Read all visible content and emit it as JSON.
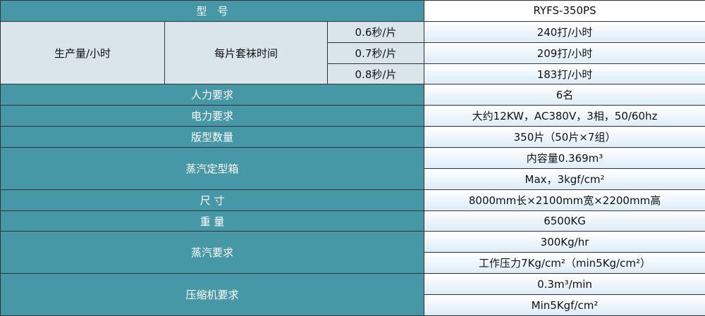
{
  "model": {
    "label": "型　号",
    "value": "RYFS-350PS"
  },
  "production": {
    "label": "生产量/小时",
    "sub_label": "每片套袜时间",
    "rows": [
      {
        "time": "0.6秒/片",
        "value": "240打/小时"
      },
      {
        "time": "0.7秒/片",
        "value": "209打/小时"
      },
      {
        "time": "0.8秒/片",
        "value": "183打/小时"
      }
    ]
  },
  "labor": {
    "label": "人力要求",
    "value": "6名"
  },
  "power": {
    "label": "电力要求",
    "value": "大约12KW，AC380V，3相，50/60hz"
  },
  "plates": {
    "label": "版型数量",
    "value": "350片（50片×7组）"
  },
  "steam_box": {
    "label": "蒸汽定型箱",
    "values": [
      "内容量0.369m³",
      "Max，3kgf/cm²"
    ]
  },
  "size": {
    "label": "尺 寸",
    "value": "8000mm长×2100mm宽×2200mm高"
  },
  "weight": {
    "label": "重 量",
    "value": "6500KG"
  },
  "steam": {
    "label": "蒸汽要求",
    "values": [
      "300Kg/hr",
      "工作压力7Kg/cm²（min5Kg/cm²）"
    ]
  },
  "compressor": {
    "label": "压缩机要求",
    "values": [
      "0.3m³/min",
      "Min5Kgf/cm²"
    ]
  },
  "colors": {
    "header": "#4798a6",
    "subcell": "#d9e5ea"
  }
}
